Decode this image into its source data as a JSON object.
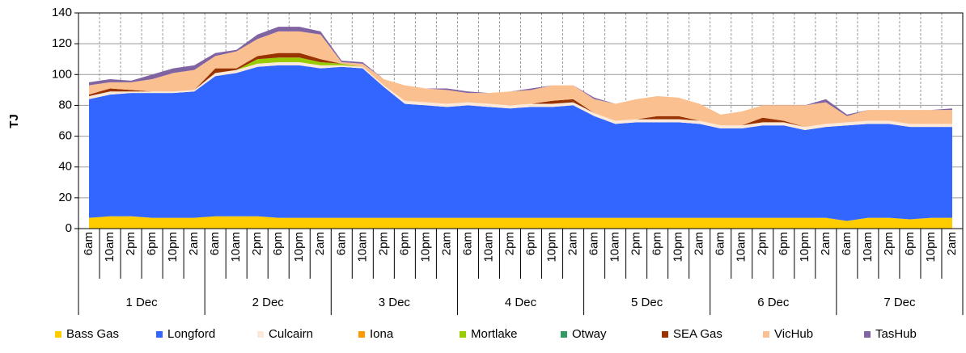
{
  "chart_data": {
    "type": "stacked_area",
    "y_label": "TJ",
    "categories": [
      "6am",
      "10am",
      "2pm",
      "6pm",
      "10pm",
      "2am",
      "6am",
      "10am",
      "2pm",
      "6pm",
      "10pm",
      "2am",
      "6am",
      "10am",
      "2pm",
      "6pm",
      "10pm",
      "2am",
      "6am",
      "10am",
      "2pm",
      "6pm",
      "10pm",
      "2am",
      "6am",
      "10am",
      "2pm",
      "6pm",
      "10pm",
      "2am",
      "6am",
      "10am",
      "2pm",
      "6pm",
      "10pm",
      "2am",
      "6am",
      "10am",
      "2pm",
      "6pm",
      "10pm",
      "2am"
    ],
    "x_groups": [
      "1 Dec",
      "2 Dec",
      "3 Dec",
      "4 Dec",
      "5 Dec",
      "6 Dec",
      "7 Dec"
    ],
    "ylim": [
      0,
      140
    ],
    "yticks": [
      0,
      20,
      40,
      60,
      80,
      100,
      120,
      140
    ],
    "grid": true,
    "series": [
      {
        "name": "Bass Gas",
        "color": "#ffcc00",
        "values": [
          7,
          8,
          8,
          7,
          7,
          7,
          8,
          8,
          8,
          7,
          7,
          7,
          7,
          7,
          7,
          7,
          7,
          7,
          7,
          7,
          7,
          7,
          7,
          7,
          7,
          7,
          7,
          7,
          7,
          7,
          7,
          7,
          7,
          7,
          7,
          7,
          5,
          7,
          7,
          6,
          7,
          7
        ]
      },
      {
        "name": "Longford",
        "color": "#3366ff",
        "values": [
          77,
          79,
          80,
          81,
          81,
          82,
          91,
          93,
          97,
          99,
          99,
          97,
          98,
          97,
          85,
          74,
          73,
          72,
          73,
          72,
          71,
          72,
          72,
          73,
          66,
          61,
          62,
          62,
          62,
          61,
          58,
          58,
          60,
          60,
          57,
          59,
          62,
          61,
          61,
          60,
          59,
          59
        ]
      },
      {
        "name": "Culcairn",
        "color": "#fde9d9",
        "values": [
          2,
          2,
          1,
          1,
          1,
          1,
          2,
          2,
          2,
          2,
          2,
          2,
          1,
          1,
          1,
          2,
          2,
          2,
          2,
          2,
          2,
          2,
          2,
          2,
          2,
          2,
          2,
          2,
          2,
          2,
          2,
          2,
          2,
          2,
          2,
          2,
          2,
          2,
          2,
          2,
          2,
          2
        ]
      },
      {
        "name": "Iona",
        "color": "#ff9900",
        "values": [
          0,
          0,
          0,
          0,
          0,
          0,
          0,
          0,
          0,
          0,
          0,
          0,
          0,
          0,
          0,
          0,
          0,
          0,
          0,
          0,
          0,
          0,
          0,
          0,
          0,
          0,
          0,
          0,
          0,
          0,
          0,
          0,
          0,
          0,
          0,
          0,
          0,
          0,
          0,
          0,
          0,
          0
        ]
      },
      {
        "name": "Mortlake",
        "color": "#99cc00",
        "values": [
          0,
          0,
          0,
          0,
          0,
          0,
          0,
          0,
          3,
          3,
          3,
          2,
          1,
          0,
          0,
          0,
          0,
          0,
          0,
          0,
          0,
          0,
          0,
          0,
          0,
          0,
          0,
          0,
          0,
          0,
          0,
          0,
          0,
          0,
          0,
          0,
          0,
          0,
          0,
          0,
          0,
          0
        ]
      },
      {
        "name": "Otway",
        "color": "#339966",
        "values": [
          0,
          0,
          0,
          0,
          0,
          0,
          0,
          0,
          0,
          0,
          0,
          0,
          0,
          0,
          0,
          0,
          0,
          0,
          0,
          0,
          0,
          0,
          0,
          0,
          0,
          0,
          0,
          0,
          0,
          0,
          0,
          0,
          0,
          0,
          0,
          0,
          0,
          0,
          0,
          0,
          0,
          0
        ]
      },
      {
        "name": "SEA Gas",
        "color": "#993300",
        "values": [
          1,
          2,
          1,
          0,
          0,
          0,
          3,
          1,
          2,
          3,
          3,
          2,
          0,
          0,
          0,
          0,
          0,
          0,
          0,
          0,
          0,
          0,
          2,
          2,
          0,
          0,
          0,
          2,
          2,
          0,
          0,
          0,
          3,
          1,
          0,
          0,
          0,
          0,
          0,
          0,
          0,
          0
        ]
      },
      {
        "name": "VicHub",
        "color": "#fac090",
        "values": [
          6,
          4,
          5,
          8,
          12,
          13,
          8,
          11,
          11,
          14,
          14,
          16,
          1,
          2,
          4,
          10,
          9,
          9,
          6,
          7,
          9,
          9,
          10,
          9,
          9,
          11,
          13,
          13,
          12,
          11,
          7,
          9,
          8,
          10,
          14,
          14,
          4,
          7,
          7,
          9,
          9,
          9
        ]
      },
      {
        "name": "TasHub",
        "color": "#8064a2",
        "values": [
          2,
          2,
          1,
          3,
          3,
          3,
          2,
          1,
          3,
          3,
          3,
          2,
          1,
          1,
          0,
          0,
          0,
          1,
          1,
          0,
          0,
          1,
          0,
          0,
          1,
          0,
          0,
          0,
          0,
          0,
          0,
          0,
          0,
          0,
          0,
          2,
          1,
          0,
          0,
          0,
          0,
          1
        ]
      }
    ]
  }
}
